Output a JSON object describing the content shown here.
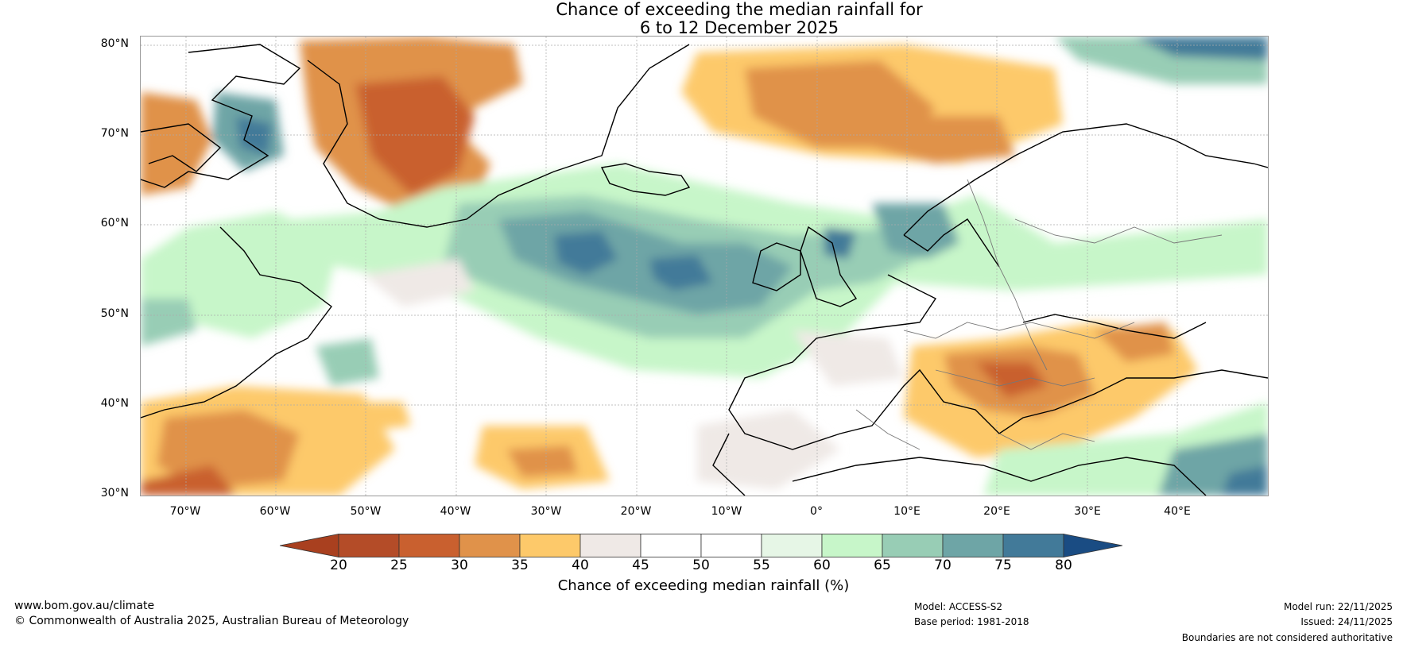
{
  "title": {
    "line1": "Chance of exceeding the median rainfall for",
    "line2": "6 to 12 December 2025"
  },
  "map": {
    "lat_labels": [
      "80°N",
      "70°N",
      "60°N",
      "50°N",
      "40°N",
      "30°N"
    ],
    "lon_labels": [
      "70°W",
      "60°W",
      "50°W",
      "40°W",
      "30°W",
      "20°W",
      "10°W",
      "0°",
      "10°E",
      "20°E",
      "30°E",
      "40°E"
    ],
    "lat_range": [
      30,
      80
    ],
    "lon_range": [
      -75,
      50
    ]
  },
  "colorbar": {
    "ticks": [
      "20",
      "25",
      "30",
      "35",
      "40",
      "45",
      "50",
      "55",
      "60",
      "65",
      "70",
      "75",
      "80"
    ],
    "colors": [
      "#a9401f",
      "#b44c28",
      "#c9602f",
      "#e0924a",
      "#fdc96a",
      "#efe9e6",
      "#ffffff",
      "#ffffff",
      "#e6f6e6",
      "#c7f6c9",
      "#98cdb5",
      "#6ea5a6",
      "#427a99",
      "#1a4c83"
    ],
    "title": "Chance of exceeding median rainfall (%)"
  },
  "footer": {
    "website": "www.bom.gov.au/climate",
    "copyright": "© Commonwealth of Australia 2025, Australian Bureau of Meteorology",
    "model": "Model: ACCESS-S2",
    "base_period": "Base period: 1981-2018",
    "model_run": "Model run: 22/11/2025",
    "issued": "Issued: 24/11/2025",
    "disclaimer": "Boundaries are not considered authoritative"
  }
}
